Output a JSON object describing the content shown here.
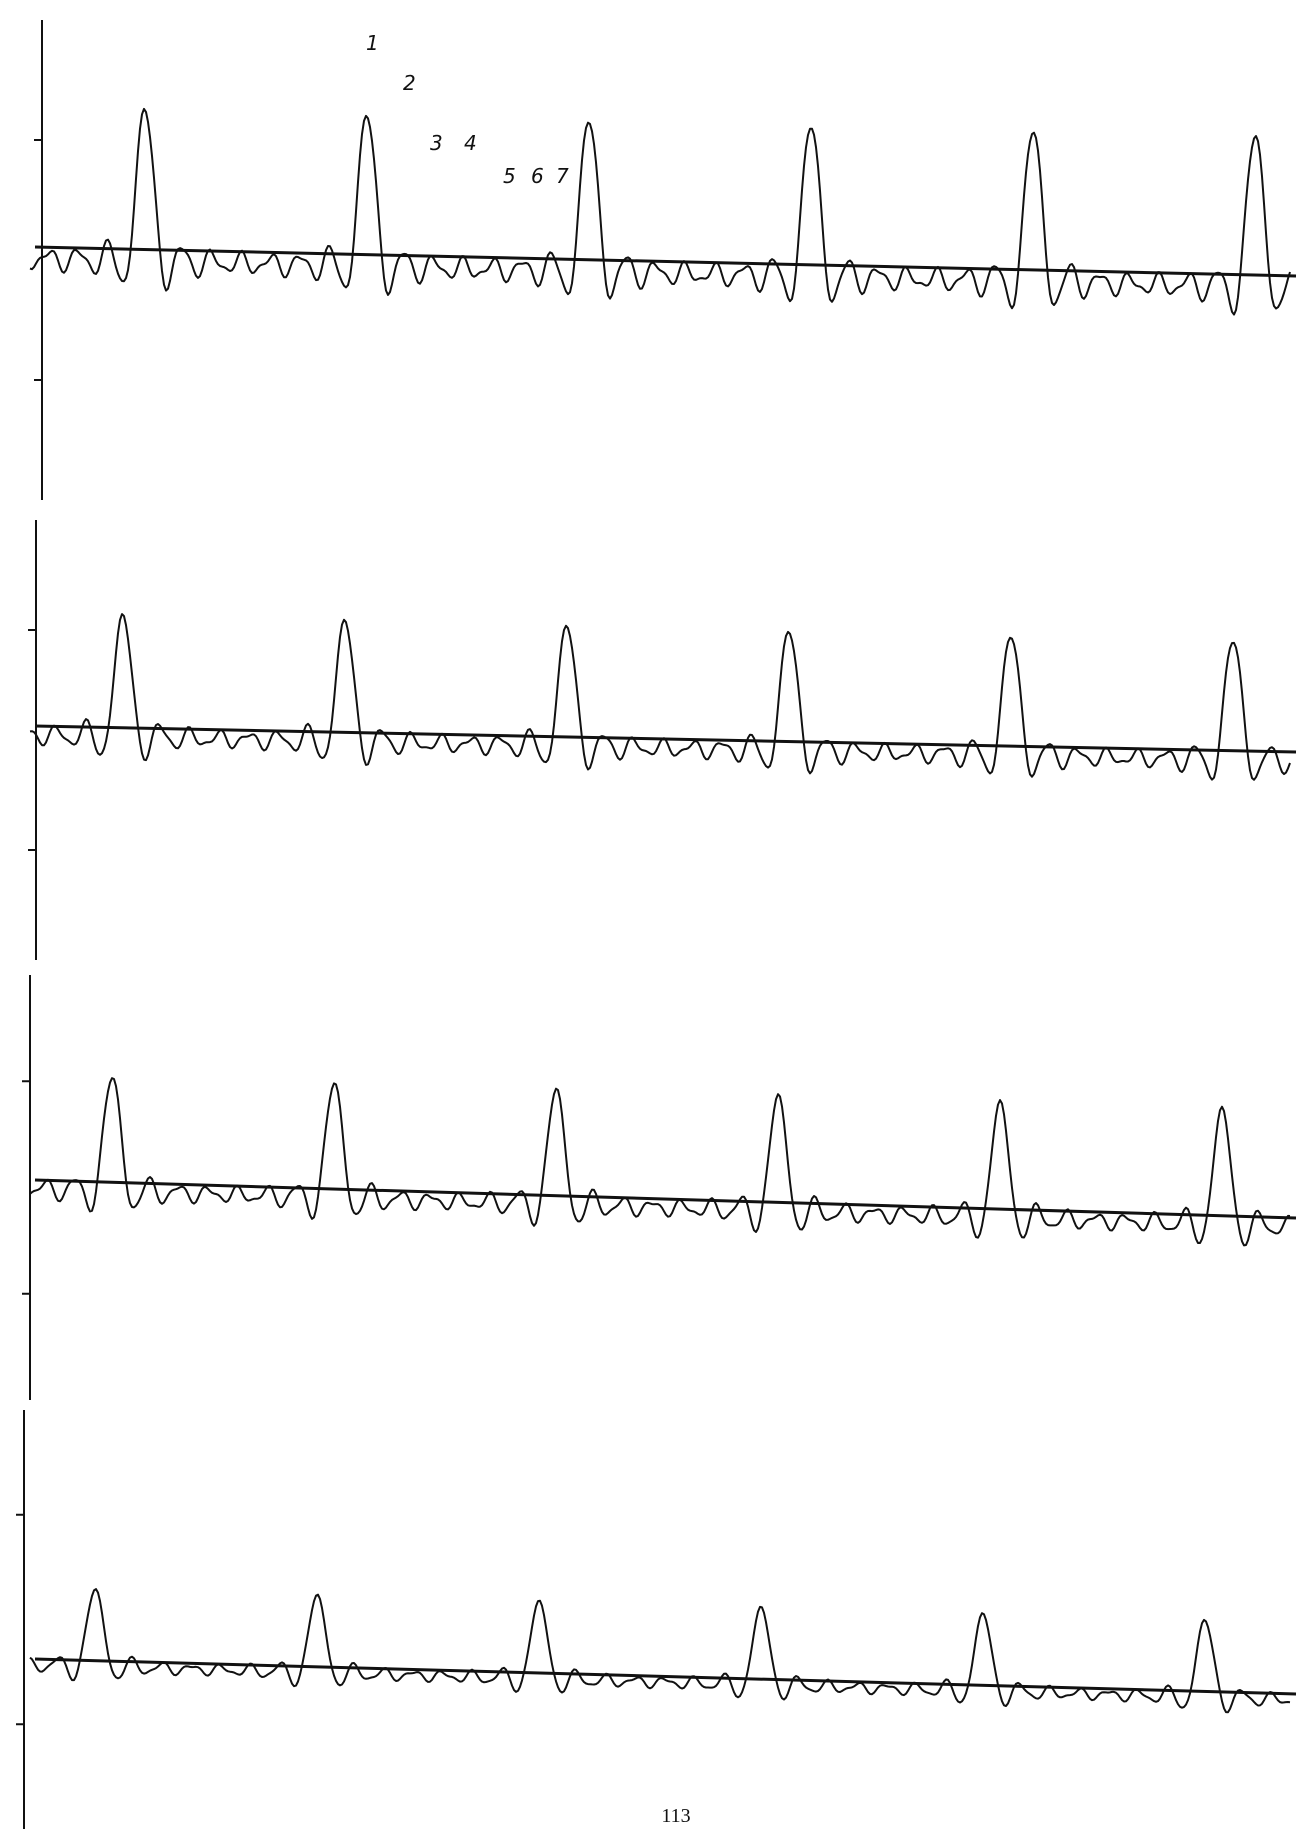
{
  "trace_labels": [
    "1",
    "2",
    "3",
    "4",
    "5",
    "6",
    "7"
  ],
  "page_number": "113"
}
